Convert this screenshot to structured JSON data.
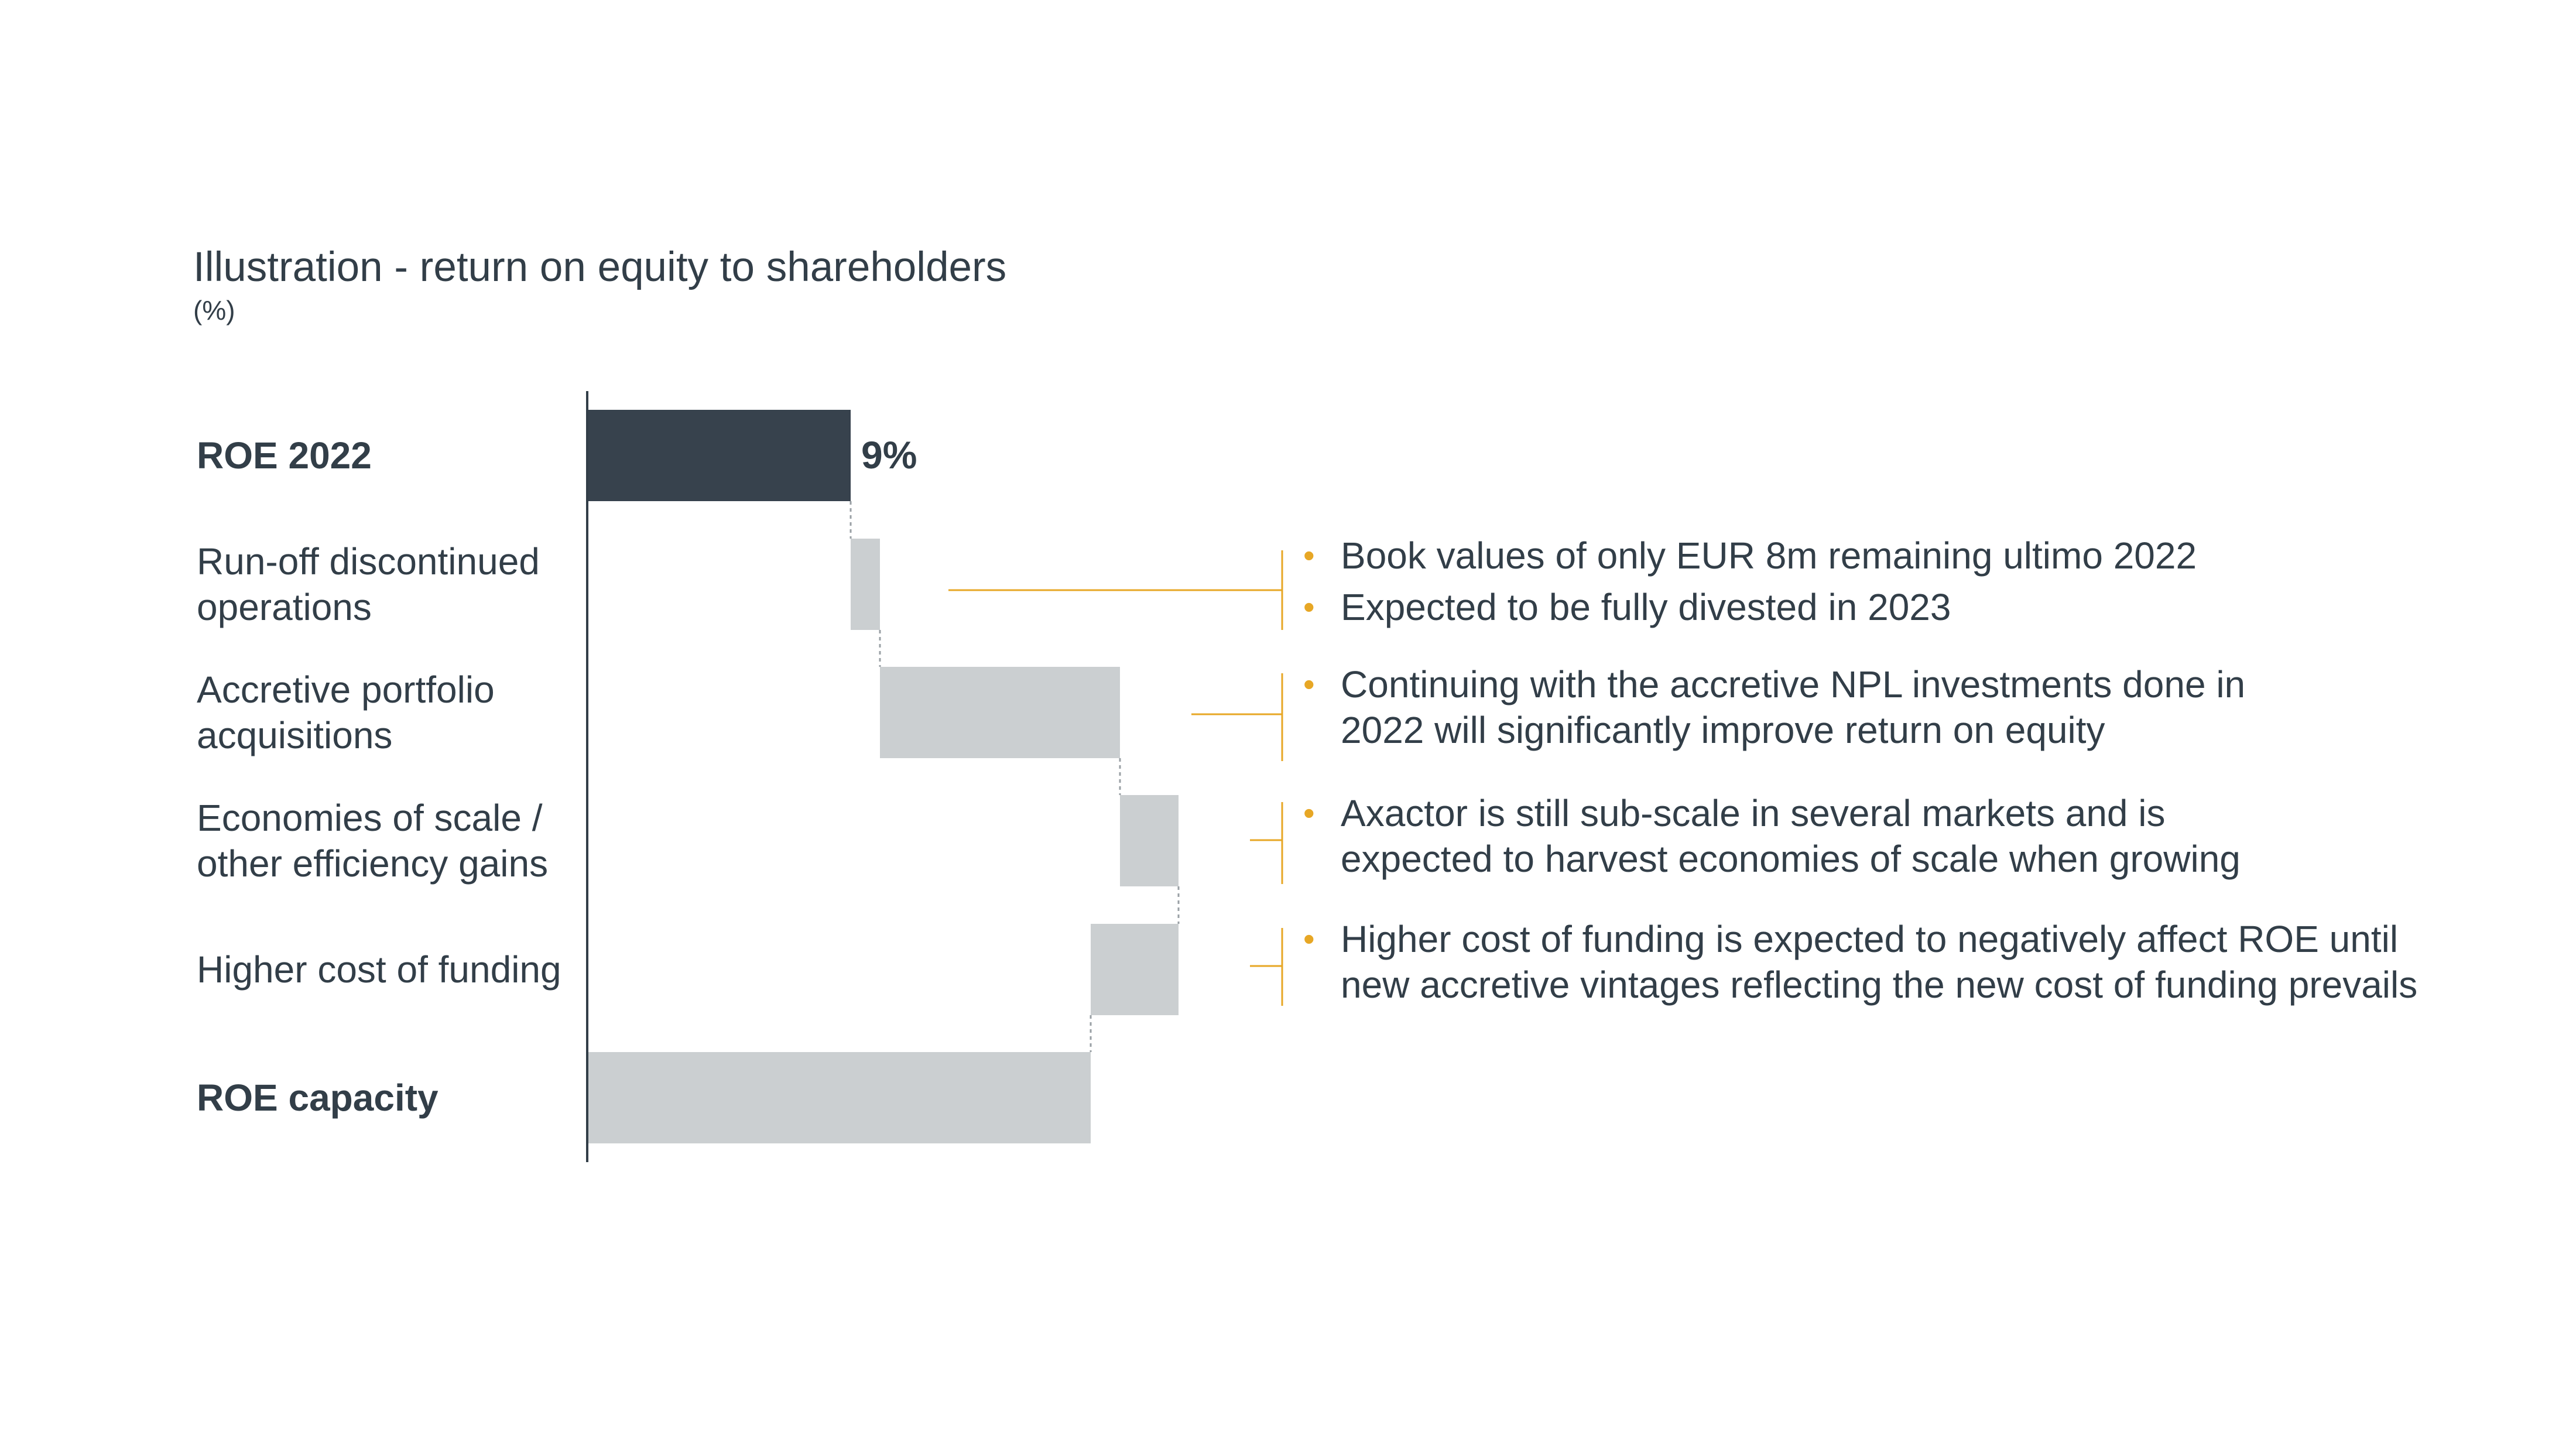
{
  "chart_data": {
    "type": "waterfall",
    "title": "Illustration - return on equity to shareholders",
    "unit_label": "(%)",
    "steps": [
      {
        "label": "ROE 2022",
        "kind": "total",
        "start": 0,
        "end": 9,
        "value_label": "9%"
      },
      {
        "label": "Run-off discontinued operations",
        "kind": "increase",
        "start": 9,
        "end": 10
      },
      {
        "label": "Accretive portfolio acquisitions",
        "kind": "increase",
        "start": 10,
        "end": 18.2
      },
      {
        "label": "Economies of scale / other efficiency gains",
        "kind": "increase",
        "start": 18.2,
        "end": 20.2
      },
      {
        "label": "Higher cost of funding",
        "kind": "decrease",
        "start": 20.2,
        "end": 17.2
      },
      {
        "label": "ROE capacity",
        "kind": "total",
        "start": 0,
        "end": 17.2
      }
    ],
    "xlim": [
      0,
      22
    ]
  },
  "labels": [
    [
      "ROE 2022"
    ],
    [
      "Run-off discontinued",
      "operations"
    ],
    [
      "Accretive portfolio",
      "acquisitions"
    ],
    [
      "Economies of scale /",
      "other efficiency gains"
    ],
    [
      "Higher cost of funding"
    ],
    [
      "ROE capacity"
    ]
  ],
  "notes": [
    {
      "step": 1,
      "bullets": [
        [
          "Book values of only EUR 8m remaining ultimo 2022"
        ],
        [
          "Expected to be fully divested in 2023"
        ]
      ]
    },
    {
      "step": 2,
      "bullets": [
        [
          "Continuing with the accretive NPL investments done in",
          "2022 will significantly improve return on equity"
        ]
      ]
    },
    {
      "step": 3,
      "bullets": [
        [
          "Axactor is still sub-scale in several markets and is",
          "expected to harvest economies of scale when growing"
        ]
      ]
    },
    {
      "step": 4,
      "bullets": [
        [
          "Higher cost of funding is expected to negatively affect ROE until",
          "new accretive vintages reflecting the new cost of funding prevails"
        ]
      ]
    }
  ],
  "colors": {
    "total_highlight": "#37424d",
    "step_bar": "#cbcfd1",
    "text": "#323e48",
    "accent": "#e7a725",
    "axis": "#323e48",
    "connector": "#9aa0a5"
  }
}
